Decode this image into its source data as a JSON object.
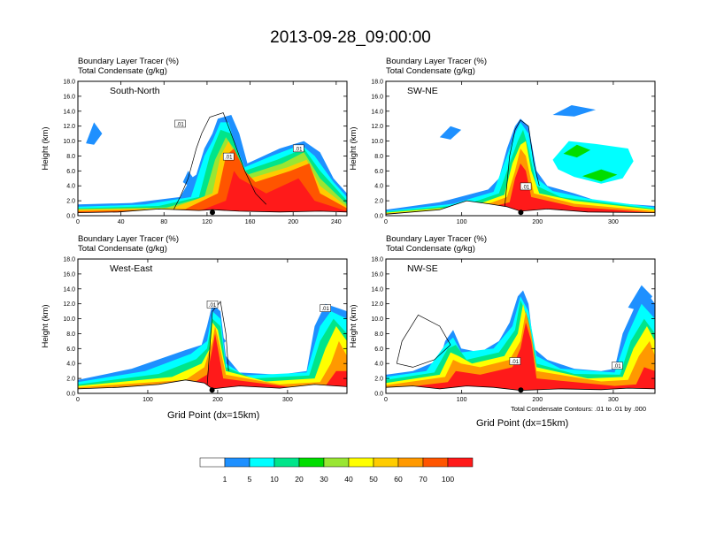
{
  "title": "2013-09-28_09:00:00",
  "colors": [
    "#ffffff",
    "#1e90ff",
    "#00ffff",
    "#00e58a",
    "#00dd00",
    "#99e633",
    "#ffff00",
    "#ffcc00",
    "#ff9900",
    "#ff5500",
    "#ff1a1a"
  ],
  "colorbar": {
    "labels": [
      "1",
      "5",
      "10",
      "20",
      "30",
      "40",
      "50",
      "60",
      "70",
      "100"
    ]
  },
  "ylabel": "Height (km)",
  "xlabel": "Grid Point (dx=15km)",
  "contour_note": "Total Condensate Contours: .01 to .01 by .000",
  "contour_label": ".01",
  "panels": [
    {
      "name": "South-North",
      "line1": "Boundary Layer Tracer   (%)",
      "line2": "Total Condensate   (g/kg)",
      "xticks": [
        "0",
        "40",
        "80",
        "120",
        "160",
        "200",
        "240"
      ],
      "xmax": 250,
      "marker_x": 125,
      "tracer_peak_x": 150,
      "tracer_peak_z": 13.5
    },
    {
      "name": "SW-NE",
      "line1": "Boundary Layer Tracer   (%)",
      "line2": "Total Condensate   (g/kg)",
      "xticks": [
        "0",
        "100",
        "200",
        "300"
      ],
      "xmax": 355,
      "marker_x": 178,
      "tracer_peak_x": 175,
      "tracer_peak_z": 13.0
    },
    {
      "name": "West-East",
      "line1": "Boundary Layer Tracer   (%)",
      "line2": "Total Condensate   (g/kg)",
      "xticks": [
        "0",
        "100",
        "200",
        "300"
      ],
      "xmax": 385,
      "marker_x": 192,
      "tracer_peak_x": 192,
      "tracer_peak_z": 13.0
    },
    {
      "name": "NW-SE",
      "line1": "Boundary Layer Tracer   (%)",
      "line2": "Total Condensate   (g/kg)",
      "xticks": [
        "0",
        "100",
        "200",
        "300"
      ],
      "xmax": 355,
      "marker_x": 178,
      "tracer_peak_x": 180,
      "tracer_peak_z": 13.8
    }
  ],
  "chart_data": {
    "type": "heatmap",
    "title": "2013-09-28_09:00:00",
    "ylabel": "Height (km)",
    "ylim": [
      0,
      18
    ],
    "yticks": [
      "0.0",
      "2.0",
      "4.0",
      "6.0",
      "8.0",
      "10.0",
      "12.0",
      "14.0",
      "16.0",
      "18.0"
    ],
    "xlabel": "Grid Point (dx=15km)",
    "legend": "bottom colorbar",
    "levels": [
      1,
      5,
      10,
      20,
      30,
      40,
      50,
      60,
      70,
      100
    ],
    "panels": [
      "South-North",
      "SW-NE",
      "West-East",
      "NW-SE"
    ]
  }
}
